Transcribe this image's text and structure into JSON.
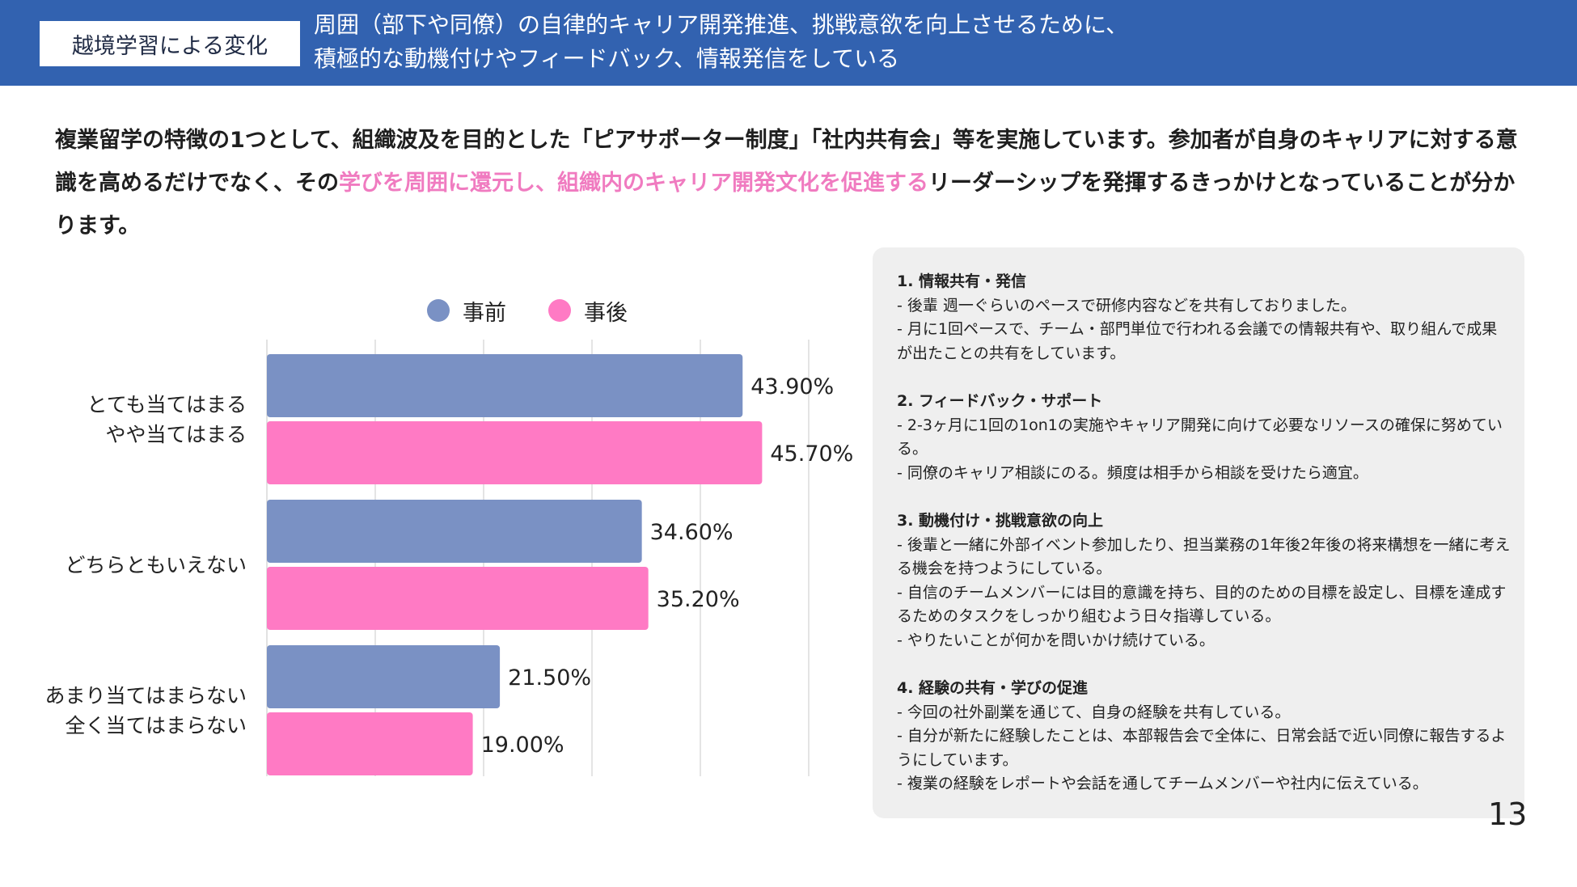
{
  "header": {
    "label": "越境学習による変化",
    "title_line1": "周囲（部下や同僚）の自律的キャリア開発推進、挑戦意欲を向上させるために、",
    "title_line2": "積極的な動機付けやフィードバック、情報発信をしている"
  },
  "intro": {
    "part1": "複業留学の特徴の1つとして、組織波及を目的とした「ピアサポーター制度」「社内共有会」等を実施しています。参加者が自身のキャリアに対する意識を高めるだけでなく、その",
    "highlight": "学びを周囲に還元し、組織内のキャリア開発文化を促進する",
    "part2": "リーダーシップを発揮するきっかけとなっていることが分かります。"
  },
  "colors": {
    "before": "#7a91c4",
    "after": "#ff7ac4",
    "header_bg": "#3262b0",
    "highlight": "#f07bc0"
  },
  "chart_data": {
    "type": "bar",
    "orientation": "horizontal",
    "categories": [
      [
        "とても当てはまる",
        "やや当てはまる"
      ],
      [
        "どちらともいえない"
      ],
      [
        "あまり当てはまらない",
        "全く当てはまらない"
      ]
    ],
    "series": [
      {
        "name": "事前",
        "values": [
          43.9,
          34.6,
          21.5
        ],
        "labels": [
          "43.90%",
          "34.60%",
          "21.50%"
        ]
      },
      {
        "name": "事後",
        "values": [
          45.7,
          35.2,
          19.0
        ],
        "labels": [
          "45.70%",
          "35.20%",
          "19.00%"
        ]
      }
    ],
    "xlim": [
      0,
      50
    ],
    "gridlines": [
      10,
      20,
      30,
      40,
      50
    ],
    "legend": "top"
  },
  "panel": {
    "sections": [
      {
        "title": "1. 情報共有・発信",
        "lines": [
          "- 後輩 週一ぐらいのペースで研修内容などを共有しておりました。",
          "- 月に1回ペースで、チーム・部門単位で行われる会議での情報共有や、取り組んで成果が出たことの共有をしています。"
        ]
      },
      {
        "title": "2. フィードバック・サポート",
        "lines": [
          "- 2-3ヶ月に1回の1on1の実施やキャリア開発に向けて必要なリソースの確保に努めている。",
          "- 同僚のキャリア相談にのる。頻度は相手から相談を受けたら適宜。"
        ]
      },
      {
        "title": "3. 動機付け・挑戦意欲の向上",
        "lines": [
          "- 後輩と一緒に外部イベント参加したり、担当業務の1年後2年後の将来構想を一緒に考える機会を持つようにしている。",
          "- 自信のチームメンバーには目的意識を持ち、目的のための目標を設定し、目標を達成するためのタスクをしっかり組むよう日々指導している。",
          "- やりたいことが何かを問いかけ続けている。"
        ]
      },
      {
        "title": "4. 経験の共有・学びの促進",
        "lines": [
          "- 今回の社外副業を通じて、自身の経験を共有している。",
          "- 自分が新たに経験したことは、本部報告会で全体に、日常会話で近い同僚に報告するようにしています。",
          "- 複業の経験をレポートや会話を通してチームメンバーや社内に伝えている。"
        ]
      }
    ]
  },
  "page_number": "13"
}
